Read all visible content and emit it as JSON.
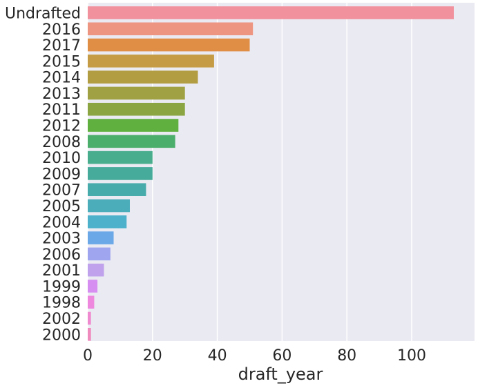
{
  "chart_data": {
    "type": "bar",
    "orientation": "horizontal",
    "categories": [
      "Undrafted",
      "2016",
      "2017",
      "2015",
      "2014",
      "2013",
      "2011",
      "2012",
      "2008",
      "2010",
      "2009",
      "2007",
      "2005",
      "2004",
      "2003",
      "2006",
      "2001",
      "1999",
      "1998",
      "2002",
      "2000"
    ],
    "values": [
      113,
      51,
      50,
      39,
      34,
      30,
      30,
      28,
      27,
      20,
      20,
      18,
      13,
      12,
      8,
      7,
      5,
      3,
      2,
      1,
      1
    ],
    "colors": [
      "#f0919d",
      "#ee9582",
      "#e08e45",
      "#c59c45",
      "#b29d42",
      "#9fa142",
      "#8aa542",
      "#60b03f",
      "#4cae6b",
      "#48ad8c",
      "#47ab9b",
      "#48abab",
      "#4badba",
      "#4db1cc",
      "#6ba8e8",
      "#a0a5ef",
      "#bfa1ec",
      "#d68ff0",
      "#ee87de",
      "#f08ad0",
      "#f08bbd"
    ],
    "xlabel": "draft_year",
    "ylabel": "",
    "xlim": [
      0,
      120
    ],
    "xticks": [
      0,
      20,
      40,
      60,
      80,
      100
    ],
    "grid": true,
    "background": "#eaeaf2"
  }
}
